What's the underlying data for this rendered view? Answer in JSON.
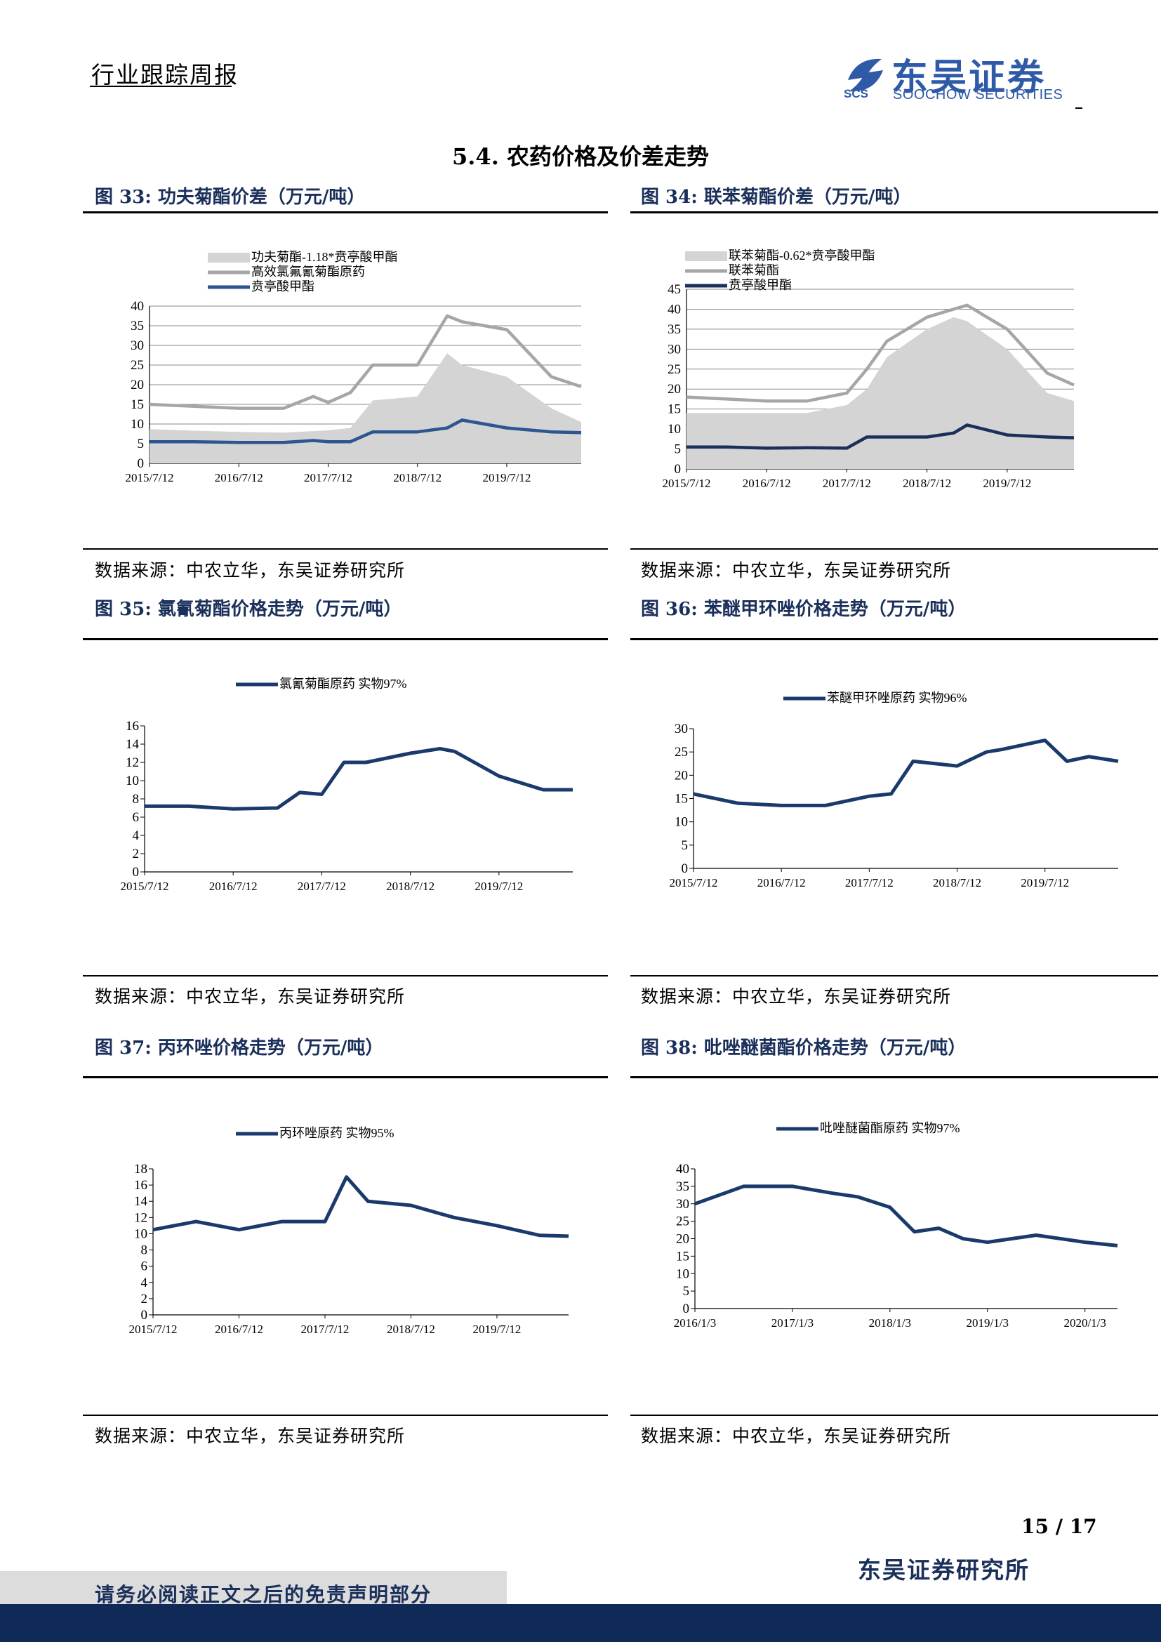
{
  "header": {
    "report_type": "行业跟踪周报",
    "logo_cn": "东吴证券",
    "logo_en": "SOOCHOW SECURITIES",
    "logo_abbr": "SCS"
  },
  "section": {
    "title": "5.4.  农药价格及价差走势"
  },
  "figures": [
    {
      "title": "图 33:  功夫菊酯价差（万元/吨）",
      "source": "数据来源：中农立华，东吴证券研究所"
    },
    {
      "title": "图 34:  联苯菊酯价差（万元/吨）",
      "source": "数据来源：中农立华，东吴证券研究所"
    },
    {
      "title": "图 35:  氯氰菊酯价格走势（万元/吨）",
      "source": "数据来源：中农立华，东吴证券研究所"
    },
    {
      "title": "图 36:  苯醚甲环唑价格走势（万元/吨）",
      "source": "数据来源：中农立华，东吴证券研究所"
    },
    {
      "title": "图 37:  丙环唑价格走势（万元/吨）",
      "source": "数据来源：中农立华，东吴证券研究所"
    },
    {
      "title": "图 38:  吡唑醚菌酯价格走势（万元/吨）",
      "source": "数据来源：中农立华，东吴证券研究所"
    }
  ],
  "chart_data": [
    {
      "type": "area",
      "legend_position": "top",
      "grid": true,
      "x_ticks": [
        "2015/7/12",
        "2016/7/12",
        "2017/7/12",
        "2018/7/12",
        "2019/7/12"
      ],
      "ylim": [
        0,
        40
      ],
      "y_ticks": [
        "0",
        "5",
        "10",
        "15",
        "20",
        "25",
        "30",
        "35",
        "40"
      ],
      "x": [
        "2015/7",
        "2016/1",
        "2016/7",
        "2017/1",
        "2017/5",
        "2017/7",
        "2017/10",
        "2018/1",
        "2018/7",
        "2018/11",
        "2019/1",
        "2019/7",
        "2020/1",
        "2020/5"
      ],
      "series": [
        {
          "name": "功夫菊酯-1.18*贲亭酸甲酯",
          "kind": "area",
          "color": "#d4d4d4",
          "values": [
            8.7,
            8.3,
            8,
            7.8,
            8.2,
            8.4,
            9,
            16,
            17,
            28,
            25,
            22,
            14,
            10.5
          ]
        },
        {
          "name": "高效氯氟氰菊酯原药",
          "kind": "line",
          "color": "#a6a6a6",
          "values": [
            15,
            14.5,
            14,
            14,
            17,
            15.5,
            18,
            25,
            25,
            37.5,
            36,
            34,
            22,
            19.5
          ]
        },
        {
          "name": "贲亭酸甲酯",
          "kind": "line",
          "color": "#2c5592",
          "values": [
            5.5,
            5.5,
            5.3,
            5.3,
            5.8,
            5.5,
            5.5,
            8,
            8,
            9,
            11,
            9,
            8,
            7.8
          ]
        }
      ]
    },
    {
      "type": "area",
      "legend_position": "top",
      "grid": true,
      "x_ticks": [
        "2015/7/12",
        "2016/7/12",
        "2017/7/12",
        "2018/7/12",
        "2019/7/12"
      ],
      "ylim": [
        0,
        45
      ],
      "y_ticks": [
        "0",
        "5",
        "10",
        "15",
        "20",
        "25",
        "30",
        "35",
        "40",
        "45"
      ],
      "x": [
        "2015/7",
        "2016/1",
        "2016/7",
        "2017/1",
        "2017/7",
        "2017/10",
        "2018/1",
        "2018/7",
        "2018/11",
        "2019/1",
        "2019/7",
        "2020/1",
        "2020/5"
      ],
      "series": [
        {
          "name": "联苯菊酯-0.62*贲亭酸甲酯",
          "kind": "area",
          "color": "#d4d4d4",
          "values": [
            14,
            14,
            14,
            14,
            16,
            20,
            28,
            35,
            38,
            37,
            30,
            19,
            17
          ]
        },
        {
          "name": "联苯菊酯",
          "kind": "line",
          "color": "#a6a6a6",
          "values": [
            18,
            17.5,
            17,
            17,
            19,
            25,
            32,
            38,
            40,
            41,
            35,
            24,
            21
          ]
        },
        {
          "name": "贲亭酸甲酯",
          "kind": "line",
          "color": "#1a2f5a",
          "values": [
            5.5,
            5.5,
            5.2,
            5.3,
            5.2,
            8,
            8,
            8,
            9,
            11,
            8.5,
            8,
            7.8
          ]
        }
      ]
    },
    {
      "type": "line",
      "legend_position": "top",
      "grid": false,
      "x_ticks": [
        "2015/7/12",
        "2016/7/12",
        "2017/7/12",
        "2018/7/12",
        "2019/7/12"
      ],
      "ylim": [
        0,
        16
      ],
      "y_ticks": [
        "0",
        "2",
        "4",
        "6",
        "8",
        "10",
        "12",
        "14",
        "16"
      ],
      "x": [
        "2015/7",
        "2016/1",
        "2016/7",
        "2017/1",
        "2017/4",
        "2017/7",
        "2017/10",
        "2018/1",
        "2018/7",
        "2018/11",
        "2019/1",
        "2019/7",
        "2020/1",
        "2020/5"
      ],
      "series": [
        {
          "name": "氯氰菊酯原药 实物97%",
          "color": "#1a3a6b",
          "values": [
            7.2,
            7.2,
            6.9,
            7,
            8.7,
            8.5,
            12,
            12,
            13,
            13.5,
            13.2,
            10.5,
            9,
            9
          ]
        }
      ]
    },
    {
      "type": "line",
      "legend_position": "top",
      "grid": false,
      "x_ticks": [
        "2015/7/12",
        "2016/7/12",
        "2017/7/12",
        "2018/7/12",
        "2019/7/12"
      ],
      "ylim": [
        0,
        30
      ],
      "y_ticks": [
        "0",
        "5",
        "10",
        "15",
        "20",
        "25",
        "30"
      ],
      "x": [
        "2015/7",
        "2016/1",
        "2016/7",
        "2017/1",
        "2017/7",
        "2017/10",
        "2018/1",
        "2018/7",
        "2018/11",
        "2019/1",
        "2019/7",
        "2019/10",
        "2020/1",
        "2020/5"
      ],
      "series": [
        {
          "name": "苯醚甲环唑原药 实物96%",
          "color": "#1a3a6b",
          "values": [
            16,
            14,
            13.5,
            13.5,
            15.5,
            16,
            23,
            22,
            25,
            25.5,
            27.5,
            23,
            24,
            23
          ]
        }
      ]
    },
    {
      "type": "line",
      "legend_position": "top",
      "grid": false,
      "x_ticks": [
        "2015/7/12",
        "2016/7/12",
        "2017/7/12",
        "2018/7/12",
        "2019/7/12"
      ],
      "ylim": [
        0,
        18
      ],
      "y_ticks": [
        "0",
        "2",
        "4",
        "6",
        "8",
        "10",
        "12",
        "14",
        "16",
        "18"
      ],
      "x": [
        "2015/7",
        "2016/1",
        "2016/7",
        "2017/1",
        "2017/7",
        "2017/10",
        "2018/1",
        "2018/7",
        "2018/11",
        "2019/1",
        "2019/7",
        "2020/1",
        "2020/5"
      ],
      "series": [
        {
          "name": "丙环唑原药 实物95%",
          "color": "#1a3a6b",
          "values": [
            10.5,
            11.5,
            10.5,
            11.5,
            11.5,
            17,
            14,
            13.5,
            12.5,
            12,
            11,
            9.8,
            9.7
          ]
        }
      ]
    },
    {
      "type": "line",
      "legend_position": "top",
      "grid": false,
      "x_ticks": [
        "2016/1/3",
        "2017/1/3",
        "2018/1/3",
        "2019/1/3",
        "2020/1/3"
      ],
      "ylim": [
        0,
        40
      ],
      "y_ticks": [
        "0",
        "5",
        "10",
        "15",
        "20",
        "25",
        "30",
        "35",
        "40"
      ],
      "x": [
        "2016/1",
        "2016/7",
        "2017/1",
        "2017/6",
        "2017/9",
        "2018/1",
        "2018/4",
        "2018/7",
        "2018/10",
        "2019/1",
        "2019/7",
        "2020/1",
        "2020/5"
      ],
      "series": [
        {
          "name": "吡唑醚菌酯原药 实物97%",
          "color": "#1a3a6b",
          "values": [
            30,
            35,
            35,
            33,
            32,
            29,
            22,
            23,
            20,
            19,
            21,
            19,
            18
          ]
        }
      ]
    }
  ],
  "footer": {
    "page": "15 / 17",
    "institute": "东吴证券研究所",
    "disclaimer": "请务必阅读正文之后的免责声明部分"
  }
}
